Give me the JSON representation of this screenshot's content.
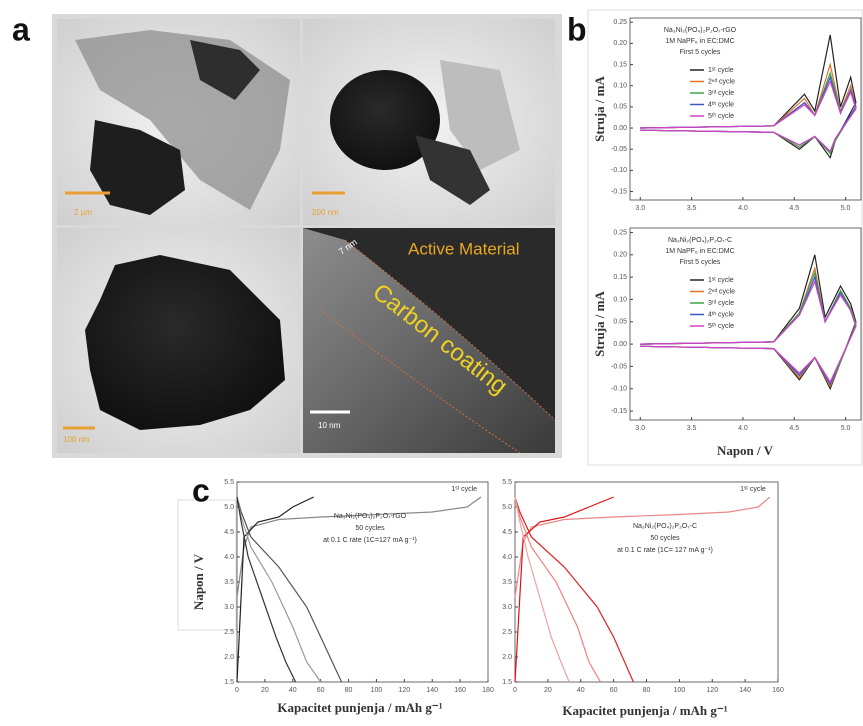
{
  "figure": {
    "panel_labels": [
      "a",
      "b",
      "c"
    ],
    "tem": {
      "scale_labels": [
        "2 µm",
        "200 nm",
        "100 nm",
        "10 nm"
      ],
      "layer_labels": [
        "Active Material",
        "Carbon coating",
        "7 nm"
      ]
    }
  },
  "chart_data": [
    {
      "type": "line",
      "y_label": "Struja / mA",
      "annotation": [
        "Na₃Ni₂(PO₄)₂P₂O₇-rGO",
        "1M NaPF₆ in EC:DMC",
        "First 5 cycles"
      ],
      "x": [
        3.0,
        4.3,
        4.6,
        4.7,
        4.85,
        4.95,
        5.05,
        5.1,
        4.9,
        4.85,
        4.7,
        4.55,
        4.3,
        3.0
      ],
      "xlim": [
        2.9,
        5.15
      ],
      "ylim": [
        -0.17,
        0.26
      ],
      "xticks": [
        {
          "value": 3,
          "label": "3.0"
        },
        3.5,
        {
          "value": 4,
          "label": "4.0"
        },
        4.5,
        {
          "value": 5,
          "label": "5.0"
        }
      ],
      "yticks": [
        -0.15,
        {
          "value": -0.1,
          "label": "-0.10"
        },
        -0.05,
        {
          "value": 0,
          "label": "0.00"
        },
        0.05,
        {
          "value": 0.1,
          "label": "0.10"
        },
        0.15,
        {
          "value": 0.2,
          "label": "0.20"
        },
        0.25
      ],
      "legend": "upper center",
      "series": [
        {
          "name": "1ˢᵗ cycle",
          "color": "#222222",
          "values": [
            0,
            0.005,
            0.08,
            0.04,
            0.22,
            0.05,
            0.12,
            0.06,
            -0.03,
            -0.07,
            -0.02,
            -0.05,
            -0.01,
            -0.005
          ]
        },
        {
          "name": "2ⁿᵈ cycle",
          "color": "#e0702a",
          "values": [
            0,
            0.005,
            0.07,
            0.03,
            0.15,
            0.04,
            0.1,
            0.05,
            -0.03,
            -0.06,
            -0.02,
            -0.045,
            -0.01,
            -0.005
          ]
        },
        {
          "name": "3ʳᵈ cycle",
          "color": "#3aa64a",
          "values": [
            0,
            0.005,
            0.06,
            0.03,
            0.13,
            0.04,
            0.09,
            0.05,
            -0.03,
            -0.06,
            -0.02,
            -0.045,
            -0.01,
            -0.005
          ]
        },
        {
          "name": "4ᵗʰ cycle",
          "color": "#3c57c8",
          "values": [
            0,
            0.005,
            0.06,
            0.03,
            0.12,
            0.035,
            0.09,
            0.05,
            -0.025,
            -0.055,
            -0.02,
            -0.04,
            -0.01,
            -0.005
          ]
        },
        {
          "name": "5ᵗʰ cycle",
          "color": "#d63fc8",
          "values": [
            0,
            0.005,
            0.055,
            0.03,
            0.11,
            0.035,
            0.085,
            0.045,
            -0.025,
            -0.055,
            -0.02,
            -0.04,
            -0.01,
            -0.005
          ]
        }
      ]
    },
    {
      "type": "line",
      "y_label": "Struja / mA",
      "x_label": "Napon / V",
      "annotation": [
        "Na₃Ni₂(PO₄)₂P₂O₇-C",
        "1M NaPF₆ in EC:DMC",
        "First 5 cycles"
      ],
      "x": [
        3.0,
        4.3,
        4.55,
        4.7,
        4.8,
        4.95,
        5.05,
        5.1,
        4.95,
        4.85,
        4.7,
        4.55,
        4.3,
        3.0
      ],
      "xlim": [
        2.9,
        5.15
      ],
      "ylim": [
        -0.17,
        0.26
      ],
      "xticks": [
        {
          "value": 3,
          "label": "3.0"
        },
        3.5,
        {
          "value": 4,
          "label": "4.0"
        },
        4.5,
        {
          "value": 5,
          "label": "5.0"
        }
      ],
      "yticks": [
        -0.15,
        {
          "value": -0.1,
          "label": "-0.10"
        },
        -0.05,
        {
          "value": 0,
          "label": "0.00"
        },
        0.05,
        {
          "value": 0.1,
          "label": "0.10"
        },
        0.15,
        {
          "value": 0.2,
          "label": "0.20"
        },
        0.25
      ],
      "legend": "upper center",
      "series": [
        {
          "name": "1ˢᵗ cycle",
          "color": "#222222",
          "values": [
            0,
            0.005,
            0.08,
            0.2,
            0.06,
            0.13,
            0.09,
            0.05,
            -0.04,
            -0.1,
            -0.03,
            -0.08,
            -0.01,
            -0.005
          ]
        },
        {
          "name": "2ⁿᵈ cycle",
          "color": "#e0702a",
          "values": [
            0,
            0.005,
            0.07,
            0.17,
            0.05,
            0.12,
            0.08,
            0.045,
            -0.04,
            -0.095,
            -0.03,
            -0.075,
            -0.01,
            -0.005
          ]
        },
        {
          "name": "3ʳᵈ cycle",
          "color": "#3aa64a",
          "values": [
            0,
            0.005,
            0.07,
            0.16,
            0.05,
            0.12,
            0.08,
            0.045,
            -0.04,
            -0.09,
            -0.03,
            -0.07,
            -0.01,
            -0.005
          ]
        },
        {
          "name": "4ᵗʰ cycle",
          "color": "#3c57c8",
          "values": [
            0,
            0.005,
            0.065,
            0.15,
            0.05,
            0.115,
            0.075,
            0.04,
            -0.035,
            -0.09,
            -0.03,
            -0.07,
            -0.01,
            -0.005
          ]
        },
        {
          "name": "5ᵗʰ cycle",
          "color": "#d63fc8",
          "values": [
            0,
            0.005,
            0.065,
            0.14,
            0.05,
            0.11,
            0.075,
            0.04,
            -0.035,
            -0.085,
            -0.03,
            -0.065,
            -0.01,
            -0.005
          ]
        }
      ]
    },
    {
      "type": "line",
      "y_label": "Napon / V",
      "x_label": "Kapacitet punjenja / mAh g⁻¹",
      "annotation": [
        "Na₃Ni₂(PO₄)₂P₂O₇-rGO",
        "50 cycles",
        "at 0.1 C rate (1C=127 mA g⁻¹)"
      ],
      "xlim": [
        0,
        180
      ],
      "ylim": [
        1.5,
        5.5
      ],
      "xticks": [
        0,
        20,
        40,
        60,
        80,
        100,
        120,
        140,
        160,
        180
      ],
      "yticks": [
        1.5,
        {
          "value": 2,
          "label": "2.0"
        },
        2.5,
        {
          "value": 3,
          "label": "3.0"
        },
        3.5,
        {
          "value": 4,
          "label": "4.0"
        },
        4.5,
        {
          "value": 5,
          "label": "5.0"
        },
        5.5
      ],
      "series": [
        {
          "name": "1ˢᵗ cycle",
          "color": "#888888",
          "x": [
            0,
            5,
            10,
            30,
            60,
            100,
            140,
            165,
            175
          ],
          "values": [
            3.2,
            4.2,
            4.6,
            4.75,
            4.8,
            4.85,
            4.9,
            5.0,
            5.2
          ]
        },
        {
          "color": "#222222",
          "x": [
            0,
            5,
            15,
            30,
            40,
            55
          ],
          "values": [
            1.5,
            4.4,
            4.7,
            4.8,
            5.0,
            5.2
          ]
        },
        {
          "color": "#555555",
          "x": [
            0,
            3,
            10,
            30,
            50,
            60,
            70,
            75
          ],
          "values": [
            5.2,
            4.9,
            4.4,
            3.8,
            3.0,
            2.4,
            1.8,
            1.5
          ]
        },
        {
          "color": "#999999",
          "x": [
            0,
            3,
            10,
            25,
            40,
            50,
            60
          ],
          "values": [
            5.2,
            4.8,
            4.2,
            3.5,
            2.6,
            1.9,
            1.5
          ]
        },
        {
          "color": "#333333",
          "x": [
            0,
            3,
            8,
            18,
            28,
            35,
            42
          ],
          "values": [
            5.2,
            4.7,
            4.0,
            3.2,
            2.4,
            1.9,
            1.5
          ]
        }
      ]
    },
    {
      "type": "line",
      "x_label": "Kapacitet punjenja / mAh g⁻¹",
      "annotation": [
        "Na₃Ni₂(PO₄)₂P₂O₇-C",
        "50 cycles",
        "at 0.1 C rate (1C= 127 mA g⁻¹)"
      ],
      "xlim": [
        0,
        160
      ],
      "ylim": [
        1.5,
        5.5
      ],
      "xticks": [
        0,
        20,
        40,
        60,
        80,
        100,
        120,
        140,
        160
      ],
      "yticks": [
        1.5,
        {
          "value": 2,
          "label": "2.0"
        },
        2.5,
        {
          "value": 3,
          "label": "3.0"
        },
        3.5,
        {
          "value": 4,
          "label": "4.0"
        },
        4.5,
        {
          "value": 5,
          "label": "5.0"
        },
        5.5
      ],
      "series": [
        {
          "name": "1ˢᵗ cycle",
          "color": "#e88888",
          "x": [
            0,
            5,
            10,
            30,
            60,
            100,
            130,
            148,
            155
          ],
          "values": [
            3.2,
            4.3,
            4.6,
            4.75,
            4.8,
            4.85,
            4.9,
            5.0,
            5.2
          ]
        },
        {
          "color": "#e01010",
          "x": [
            0,
            5,
            15,
            30,
            45,
            60
          ],
          "values": [
            1.5,
            4.4,
            4.7,
            4.8,
            5.0,
            5.2
          ]
        },
        {
          "color": "#e02020",
          "x": [
            0,
            3,
            10,
            30,
            50,
            60,
            68,
            72
          ],
          "values": [
            5.2,
            4.9,
            4.4,
            3.8,
            3.0,
            2.4,
            1.8,
            1.5
          ]
        },
        {
          "color": "#f08080",
          "x": [
            0,
            3,
            10,
            25,
            38,
            45,
            52
          ],
          "values": [
            5.2,
            4.8,
            4.2,
            3.5,
            2.6,
            1.9,
            1.5
          ]
        },
        {
          "color": "#f4a0a0",
          "x": [
            0,
            3,
            8,
            15,
            22,
            28,
            33
          ],
          "values": [
            5.2,
            4.7,
            4.0,
            3.2,
            2.4,
            1.9,
            1.5
          ]
        }
      ]
    }
  ]
}
